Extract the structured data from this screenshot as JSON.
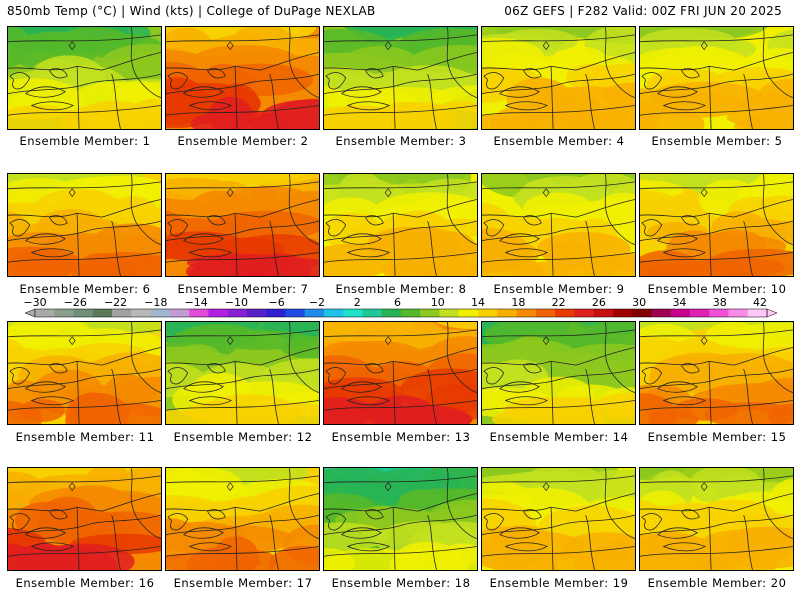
{
  "header": {
    "left": "850mb Temp (°C) | Wind (kts) | College of DuPage NEXLAB",
    "right": "06Z GEFS | F282 Valid: 00Z FRI JUN 20 2025"
  },
  "members": [
    {
      "label": "Ensemble Member: 1",
      "theme": "cool"
    },
    {
      "label": "Ensemble Member: 2",
      "theme": "hot"
    },
    {
      "label": "Ensemble Member: 3",
      "theme": "cool"
    },
    {
      "label": "Ensemble Member: 4",
      "theme": "mild"
    },
    {
      "label": "Ensemble Member: 5",
      "theme": "mild"
    },
    {
      "label": "Ensemble Member: 6",
      "theme": "warm"
    },
    {
      "label": "Ensemble Member: 7",
      "theme": "hot"
    },
    {
      "label": "Ensemble Member: 8",
      "theme": "mild"
    },
    {
      "label": "Ensemble Member: 9",
      "theme": "mild"
    },
    {
      "label": "Ensemble Member: 10",
      "theme": "warm"
    },
    {
      "label": "Ensemble Member: 11",
      "theme": "warm"
    },
    {
      "label": "Ensemble Member: 12",
      "theme": "cool"
    },
    {
      "label": "Ensemble Member: 13",
      "theme": "hot"
    },
    {
      "label": "Ensemble Member: 14",
      "theme": "cool"
    },
    {
      "label": "Ensemble Member: 15",
      "theme": "warm"
    },
    {
      "label": "Ensemble Member: 16",
      "theme": "hot"
    },
    {
      "label": "Ensemble Member: 17",
      "theme": "warm"
    },
    {
      "label": "Ensemble Member: 18",
      "theme": "cold"
    },
    {
      "label": "Ensemble Member: 19",
      "theme": "mild"
    },
    {
      "label": "Ensemble Member: 20",
      "theme": "mild"
    }
  ],
  "colorbar": {
    "labels": [
      "−30",
      "−26",
      "−22",
      "−18",
      "−14",
      "−10",
      "−6",
      "−2",
      "2",
      "6",
      "10",
      "14",
      "18",
      "22",
      "26",
      "30",
      "34",
      "38",
      "42"
    ],
    "colors": [
      "#a9a9a9",
      "#8c9d8c",
      "#6f8f7a",
      "#5a7a5a",
      "#a0a0a0",
      "#b8b8b8",
      "#9fb6cd",
      "#c39bd3",
      "#e04cd8",
      "#b31fe0",
      "#8a1fd8",
      "#5a20c8",
      "#2f1fd0",
      "#1f4be0",
      "#1f8ce8",
      "#1fc3e8",
      "#1fe0c8",
      "#1fc896",
      "#28b455",
      "#55b82a",
      "#8cc81f",
      "#c3e01f",
      "#f0f000",
      "#f8d200",
      "#f8b000",
      "#f58a00",
      "#f06400",
      "#e83a00",
      "#e01f1f",
      "#c80f0f",
      "#a00000",
      "#800000",
      "#a00050",
      "#c8008c",
      "#e01fb4",
      "#f050d8",
      "#f88ce8",
      "#fcc8f8"
    ]
  },
  "themes": {
    "cold": [
      "#1fc896",
      "#28b455",
      "#55b82a",
      "#8cc81f",
      "#c3e01f",
      "#f0f000"
    ],
    "cool": [
      "#28b455",
      "#55b82a",
      "#8cc81f",
      "#c3e01f",
      "#f0f000",
      "#f8d200"
    ],
    "mild": [
      "#8cc81f",
      "#c3e01f",
      "#f0f000",
      "#f8d200",
      "#f8b000",
      "#f8b000"
    ],
    "warm": [
      "#c3e01f",
      "#f0f000",
      "#f8d200",
      "#f8b000",
      "#f58a00",
      "#f06400"
    ],
    "hot": [
      "#f8d200",
      "#f8b000",
      "#f58a00",
      "#f06400",
      "#e83a00",
      "#e01f1f"
    ]
  }
}
